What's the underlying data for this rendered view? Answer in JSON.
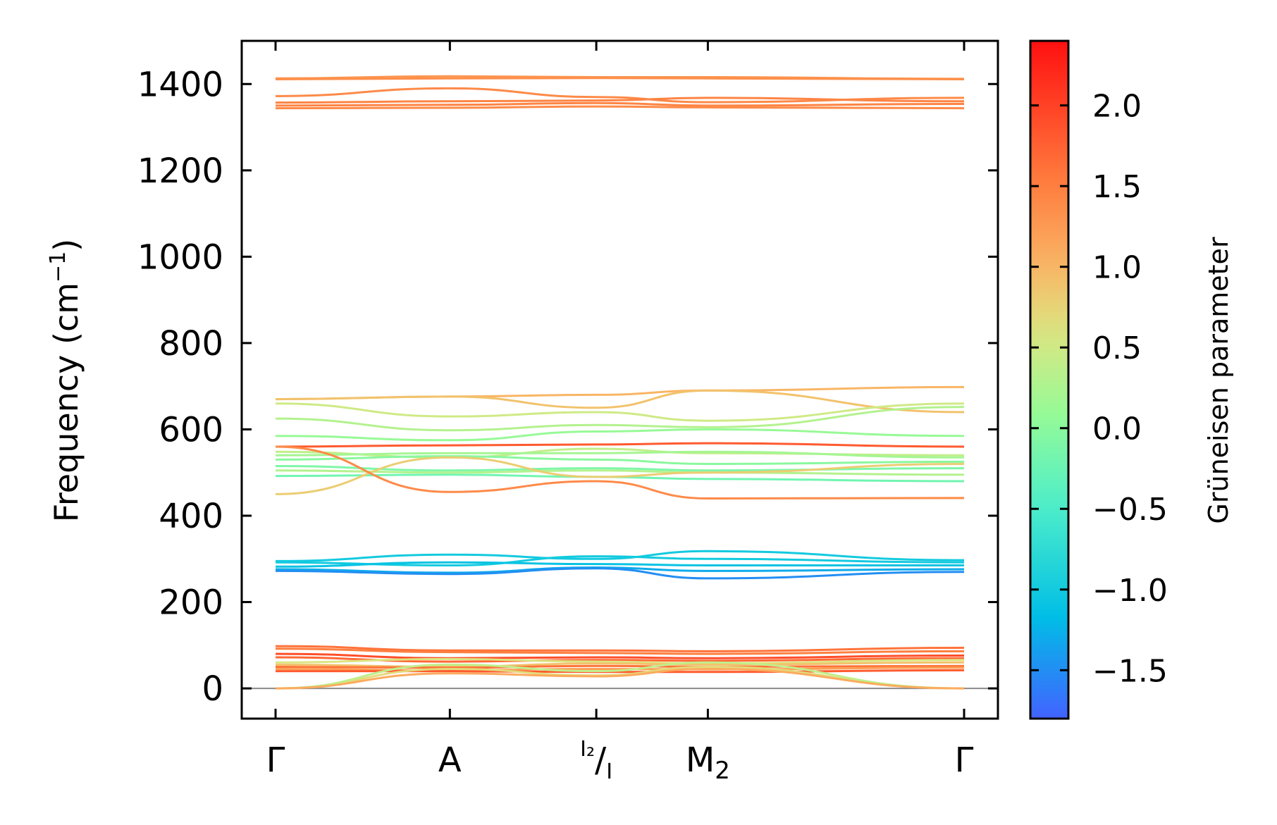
{
  "chart_data": {
    "type": "line",
    "title": "",
    "xlabel": "",
    "ylabel": "Frequency (cm⁻¹)",
    "ylabel_parts": {
      "main": "Frequency (cm",
      "exp": "−1",
      "close": ")"
    },
    "ylim": [
      -70,
      1500
    ],
    "yticks": [
      0,
      200,
      400,
      600,
      800,
      1000,
      1200,
      1400
    ],
    "ytick_labels": [
      "0",
      "200",
      "400",
      "600",
      "800",
      "1000",
      "1200",
      "1400"
    ],
    "kpoints": [
      {
        "name": "Gamma",
        "x": 0.0,
        "label": "Γ"
      },
      {
        "name": "A",
        "x": 1.0,
        "label": "A"
      },
      {
        "name": "I2-I",
        "x": 1.84,
        "label": "",
        "sup": "I₂",
        "sub": "I",
        "slash": "/"
      },
      {
        "name": "M2",
        "x": 2.48,
        "label": "M",
        "sub": "2"
      },
      {
        "name": "Gamma-end",
        "x": 3.95,
        "label": "Γ"
      }
    ],
    "colorbar": {
      "label": "Grüneisen parameter",
      "range": [
        -1.8,
        2.4
      ],
      "ticks": [
        -1.5,
        -1.0,
        -0.5,
        0.0,
        0.5,
        1.0,
        1.5,
        2.0
      ],
      "tick_labels": [
        "−1.5",
        "−1.0",
        "−0.5",
        "0.0",
        "0.5",
        "1.0",
        "1.5",
        "2.0"
      ]
    },
    "series": [
      {
        "name": "b1",
        "g": 1.3,
        "freq": [
          1413,
          1418,
          1416,
          1416,
          1412
        ]
      },
      {
        "name": "b2",
        "g": 1.35,
        "freq": [
          1411,
          1413,
          1414,
          1413,
          1411
        ]
      },
      {
        "name": "b3",
        "g": 1.4,
        "freq": [
          1372,
          1390,
          1370,
          1358,
          1368
        ]
      },
      {
        "name": "b4",
        "g": 1.45,
        "freq": [
          1357,
          1360,
          1362,
          1368,
          1360
        ]
      },
      {
        "name": "b5",
        "g": 1.45,
        "freq": [
          1350,
          1352,
          1356,
          1350,
          1354
        ]
      },
      {
        "name": "b6",
        "g": 1.4,
        "freq": [
          1344,
          1345,
          1348,
          1346,
          1344
        ]
      },
      {
        "name": "b7",
        "g": 1.0,
        "freq": [
          670,
          676,
          680,
          690,
          698
        ]
      },
      {
        "name": "b8",
        "g": 0.9,
        "freq": [
          670,
          676,
          650,
          690,
          640
        ]
      },
      {
        "name": "b9",
        "g": 0.5,
        "freq": [
          660,
          630,
          640,
          620,
          660
        ]
      },
      {
        "name": "b10",
        "g": 0.3,
        "freq": [
          625,
          598,
          610,
          605,
          652
        ]
      },
      {
        "name": "b11",
        "g": 0.1,
        "freq": [
          585,
          575,
          595,
          600,
          585
        ]
      },
      {
        "name": "b12",
        "g": 1.8,
        "freq": [
          560,
          563,
          565,
          568,
          560
        ]
      },
      {
        "name": "b13",
        "g": 0.4,
        "freq": [
          548,
          535,
          555,
          545,
          540
        ]
      },
      {
        "name": "b14",
        "g": 0.2,
        "freq": [
          540,
          545,
          545,
          548,
          535
        ]
      },
      {
        "name": "b15",
        "g": 0.0,
        "freq": [
          530,
          538,
          530,
          520,
          525
        ]
      },
      {
        "name": "b16",
        "g": -0.1,
        "freq": [
          515,
          505,
          510,
          505,
          510
        ]
      },
      {
        "name": "b17",
        "g": 0.3,
        "freq": [
          505,
          500,
          505,
          500,
          495
        ]
      },
      {
        "name": "b18",
        "g": -0.2,
        "freq": [
          492,
          495,
          490,
          485,
          480
        ]
      },
      {
        "name": "b19",
        "g": 0.8,
        "freq": [
          450,
          535,
          490,
          500,
          520
        ]
      },
      {
        "name": "b20",
        "g": 1.4,
        "freq": [
          560,
          455,
          480,
          440,
          441
        ]
      },
      {
        "name": "b21",
        "g": -1.0,
        "freq": [
          295,
          310,
          300,
          318,
          297
        ]
      },
      {
        "name": "b22",
        "g": -1.0,
        "freq": [
          292,
          285,
          306,
          300,
          292
        ]
      },
      {
        "name": "b23",
        "g": -1.1,
        "freq": [
          282,
          292,
          288,
          285,
          285
        ]
      },
      {
        "name": "b24",
        "g": -1.3,
        "freq": [
          276,
          268,
          280,
          272,
          276
        ]
      },
      {
        "name": "b25",
        "g": -1.5,
        "freq": [
          272,
          265,
          278,
          255,
          270
        ]
      },
      {
        "name": "b26",
        "g": 1.6,
        "freq": [
          98,
          88,
          88,
          86,
          94
        ]
      },
      {
        "name": "b27",
        "g": 1.5,
        "freq": [
          92,
          84,
          82,
          80,
          86
        ]
      },
      {
        "name": "b28",
        "g": 1.9,
        "freq": [
          80,
          70,
          72,
          70,
          76
        ]
      },
      {
        "name": "b29",
        "g": 1.7,
        "freq": [
          72,
          62,
          66,
          64,
          70
        ]
      },
      {
        "name": "b30",
        "g": 0.6,
        "freq": [
          60,
          68,
          62,
          58,
          66
        ]
      },
      {
        "name": "b31",
        "g": 0.9,
        "freq": [
          55,
          50,
          58,
          55,
          60
        ]
      },
      {
        "name": "b32",
        "g": 1.6,
        "freq": [
          50,
          48,
          52,
          50,
          52
        ]
      },
      {
        "name": "b33",
        "g": 1.2,
        "freq": [
          45,
          42,
          45,
          44,
          48
        ]
      },
      {
        "name": "b34",
        "g": 1.8,
        "freq": [
          40,
          40,
          38,
          38,
          42
        ]
      },
      {
        "name": "b35",
        "g": 0.7,
        "freq": [
          0,
          45,
          30,
          50,
          0
        ]
      },
      {
        "name": "b36",
        "g": 0.4,
        "freq": [
          0,
          55,
          40,
          60,
          0
        ]
      },
      {
        "name": "b37",
        "g": 1.1,
        "freq": [
          0,
          35,
          28,
          45,
          0
        ]
      }
    ]
  }
}
